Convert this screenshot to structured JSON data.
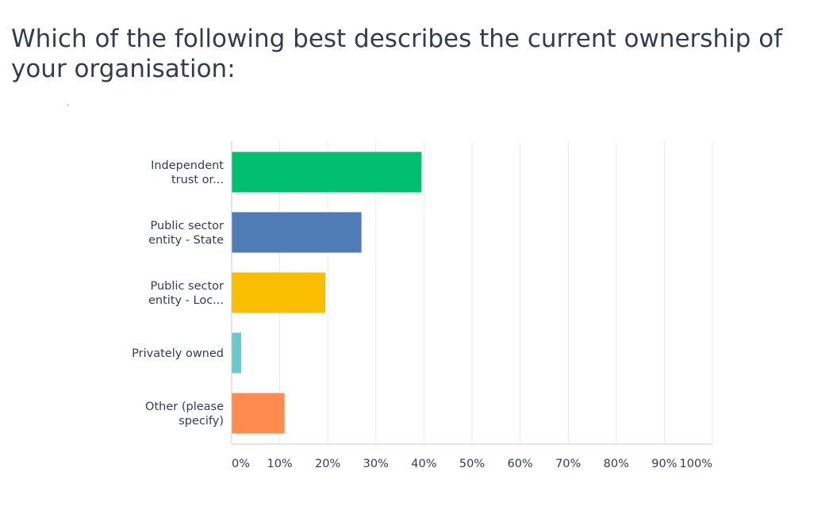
{
  "question": {
    "title": "Which of the following best describes the current ownership of your organisation:"
  },
  "chart_data": {
    "type": "bar",
    "orientation": "horizontal",
    "categories": [
      "Independent trust or...",
      "Public sector entity - State",
      "Public sector entity - Loc...",
      "Privately owned",
      "Other (please specify)"
    ],
    "category_label_lines": [
      [
        "Independent",
        "trust or..."
      ],
      [
        "Public sector",
        "entity - State"
      ],
      [
        "Public sector",
        "entity - Loc..."
      ],
      [
        "Privately owned"
      ],
      [
        "Other (please",
        "specify)"
      ]
    ],
    "values": [
      39.5,
      27,
      19.5,
      2,
      11
    ],
    "value_unit": "%",
    "colors": [
      "#00bf6f",
      "#507cb6",
      "#f9be00",
      "#6bc8cd",
      "#ff8b4f"
    ],
    "xlim": [
      0,
      100
    ],
    "ticks": [
      "0%",
      "10%",
      "20%",
      "30%",
      "40%",
      "50%",
      "60%",
      "70%",
      "80%",
      "90%",
      "100%"
    ],
    "grid": true,
    "title": "",
    "xlabel": "",
    "ylabel": ""
  }
}
